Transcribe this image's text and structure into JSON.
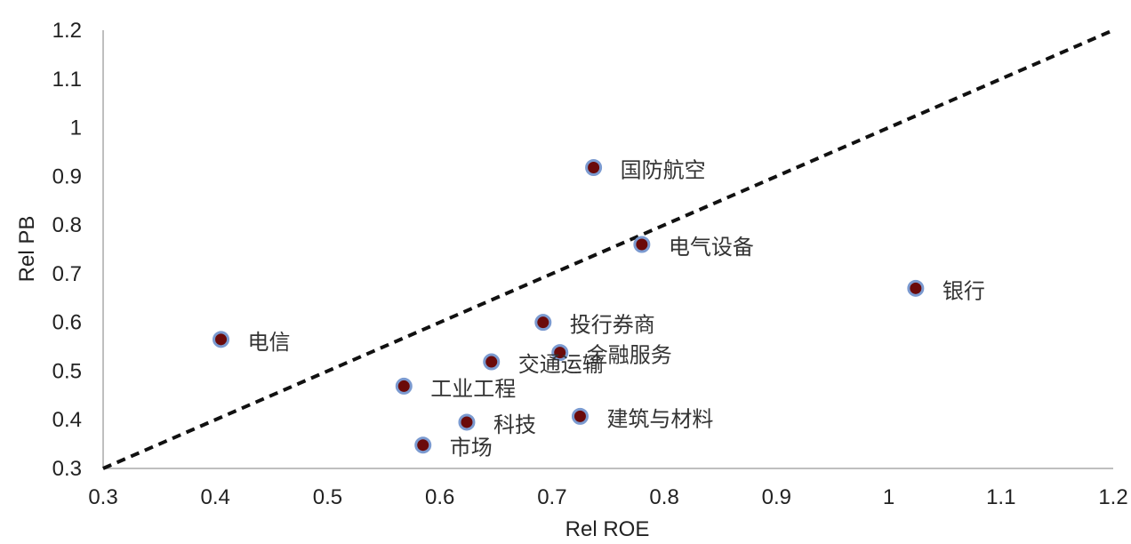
{
  "chart_data": {
    "type": "scatter",
    "xlabel": "Rel ROE",
    "ylabel": "Rel PB",
    "xlim": [
      0.3,
      1.2
    ],
    "ylim": [
      0.3,
      1.2
    ],
    "x_ticks": [
      "0.3",
      "0.4",
      "0.5",
      "0.6",
      "0.7",
      "0.8",
      "0.9",
      "1",
      "1.1",
      "1.2"
    ],
    "y_ticks": [
      "0.3",
      "0.4",
      "0.5",
      "0.6",
      "0.7",
      "0.8",
      "0.9",
      "1",
      "1.1",
      "1.2"
    ],
    "grid": false,
    "reference_line": {
      "style": "dashed",
      "from": [
        0.3,
        0.3
      ],
      "to": [
        1.2,
        1.2
      ]
    },
    "marker": {
      "fill": "#6b0a0a",
      "stroke": "#7b9ad0"
    },
    "points": [
      {
        "label": "国防航空",
        "x": 0.737,
        "y": 0.918
      },
      {
        "label": "电气设备",
        "x": 0.78,
        "y": 0.76
      },
      {
        "label": "银行",
        "x": 1.024,
        "y": 0.67
      },
      {
        "label": "投行券商",
        "x": 0.692,
        "y": 0.6
      },
      {
        "label": "电信",
        "x": 0.405,
        "y": 0.565
      },
      {
        "label": "金融服务",
        "x": 0.707,
        "y": 0.538
      },
      {
        "label": "交通运输",
        "x": 0.646,
        "y": 0.519
      },
      {
        "label": "工业工程",
        "x": 0.568,
        "y": 0.469
      },
      {
        "label": "建筑与材料",
        "x": 0.725,
        "y": 0.407
      },
      {
        "label": "科技",
        "x": 0.624,
        "y": 0.395
      },
      {
        "label": "市场",
        "x": 0.585,
        "y": 0.348
      }
    ]
  }
}
